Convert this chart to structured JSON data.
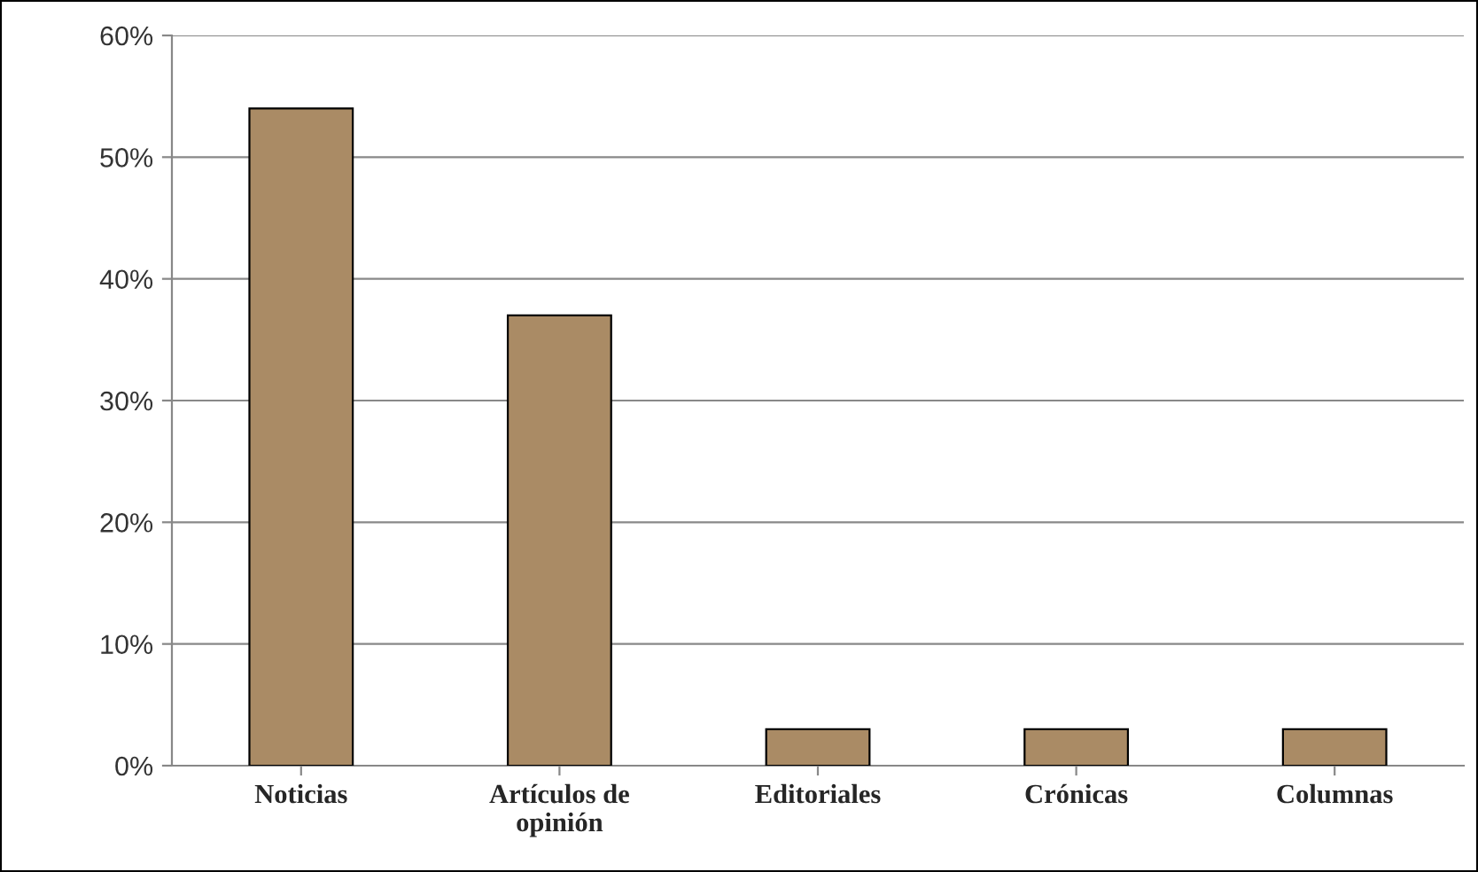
{
  "chart_data": {
    "type": "bar",
    "categories": [
      "Noticias",
      "Artículos de opinión",
      "Editoriales",
      "Crónicas",
      "Columnas"
    ],
    "values": [
      54,
      37,
      3,
      3,
      3
    ],
    "color": "#aa8b65",
    "ylim": [
      0,
      60
    ],
    "yticks": [
      {
        "value": 0,
        "label": "0%"
      },
      {
        "value": 10,
        "label": "10%"
      },
      {
        "value": 20,
        "label": "20%"
      },
      {
        "value": 30,
        "label": "30%"
      },
      {
        "value": 40,
        "label": "40%"
      },
      {
        "value": 50,
        "label": "50%"
      },
      {
        "value": 60,
        "label": "60%"
      }
    ],
    "grid": "y"
  }
}
